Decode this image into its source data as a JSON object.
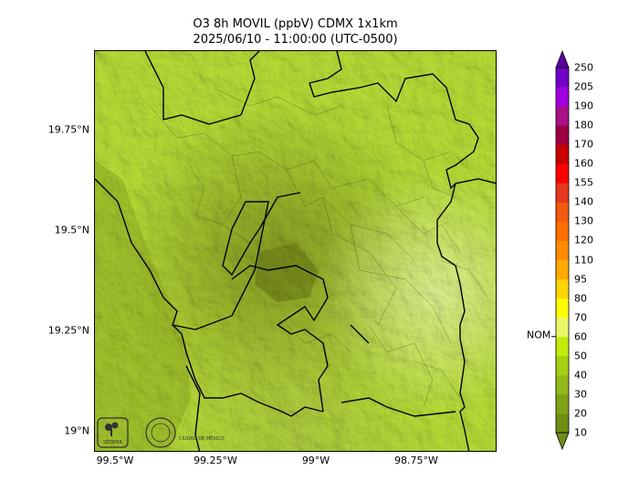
{
  "title": {
    "line1": "O3 8h MOVIL (ppbV) CDMX 1x1km",
    "line2": "2025/06/10 - 11:00:00 (UTC-0500)"
  },
  "axes": {
    "lat_ticks": [
      {
        "label": "19.75°N",
        "value": 19.75
      },
      {
        "label": "19.5°N",
        "value": 19.5
      },
      {
        "label": "19.25°N",
        "value": 19.25
      },
      {
        "label": "19°N",
        "value": 19.0
      }
    ],
    "lon_ticks": [
      {
        "label": "99.5°W",
        "value": -99.5
      },
      {
        "label": "99.25°W",
        "value": -99.25
      },
      {
        "label": "99°W",
        "value": -99.0
      },
      {
        "label": "98.75°W",
        "value": -98.75
      }
    ]
  },
  "colorbar": {
    "levels": [
      10,
      20,
      30,
      40,
      50,
      60,
      70,
      80,
      95,
      110,
      120,
      130,
      140,
      155,
      160,
      170,
      180,
      190,
      205,
      250
    ],
    "colors": [
      "#6e8f14",
      "#7fa316",
      "#8fb818",
      "#a4cf12",
      "#c2ec0c",
      "#e8f86a",
      "#ffff00",
      "#ffd400",
      "#ffaa00",
      "#ff8c00",
      "#ff6e00",
      "#f25a10",
      "#e83820",
      "#ff0000",
      "#c80000",
      "#9c0040",
      "#aa1088",
      "#a000e0",
      "#7000c8"
    ],
    "extend_low_color": "#6e8f14",
    "extend_high_color": "#5a00a0",
    "marker_label": "NOM",
    "marker_value": 60
  },
  "logos": [
    {
      "name": "sedema-logo",
      "text": "SEDEMA"
    },
    {
      "name": "cdmx-seal-logo",
      "text": "CIUDAD DE MÉXICO"
    }
  ]
}
